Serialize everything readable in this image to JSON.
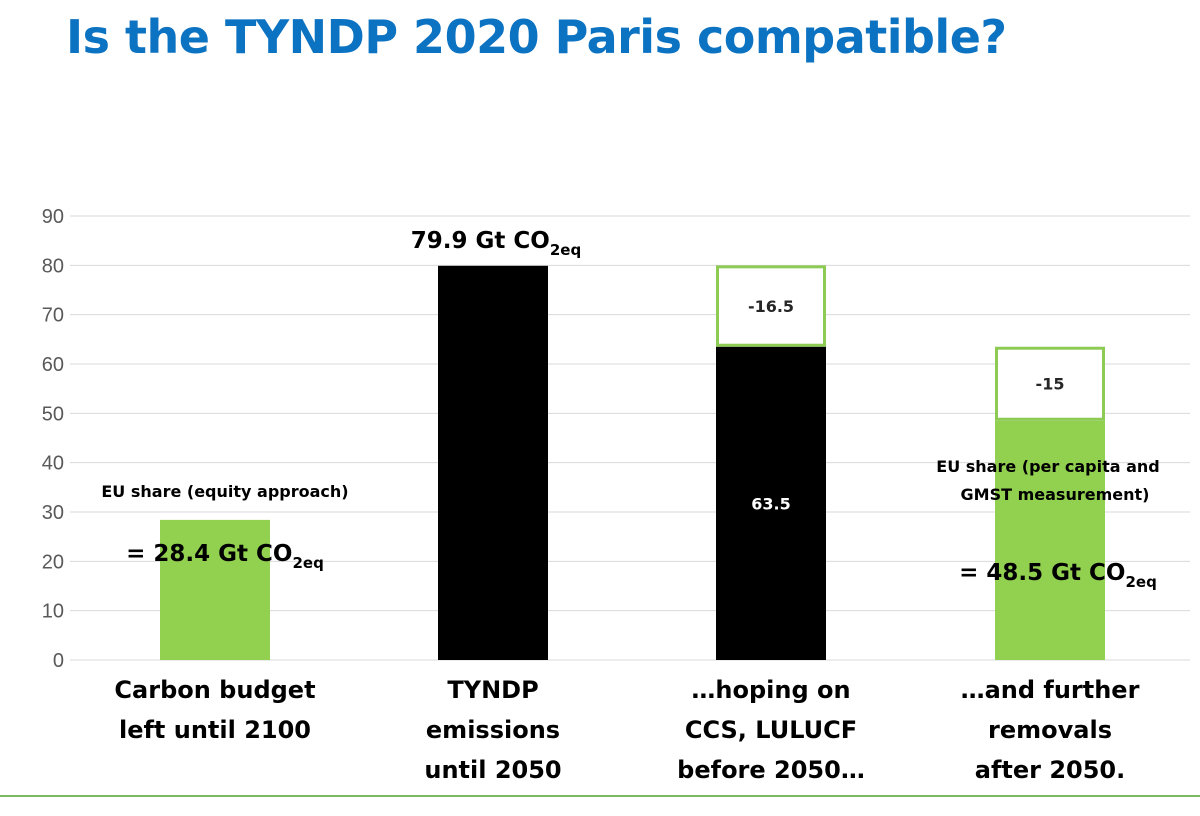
{
  "title": "Is the TYNDP 2020 Paris compatible?",
  "colors": {
    "title": "#0c72c2",
    "green": "#92d050",
    "green_outline": "#8dcb55",
    "black": "#000000",
    "grid": "#d9d9d9",
    "rule": "#7cb961"
  },
  "chart_data": {
    "type": "bar",
    "ylim": [
      0,
      90
    ],
    "yticks": [
      0,
      10,
      20,
      30,
      40,
      50,
      60,
      70,
      80,
      90
    ],
    "grid": true,
    "categories": [
      [
        "Carbon budget",
        "left until 2100"
      ],
      [
        "TYNDP",
        "emissions",
        "until 2050"
      ],
      [
        "…hoping on",
        "CCS, LULUCF",
        "before 2050…"
      ],
      [
        "…and further",
        "removals",
        "after 2050."
      ]
    ],
    "bars": [
      {
        "category": 0,
        "value": 28.4,
        "color": "#92d050"
      },
      {
        "category": 1,
        "value": 79.9,
        "color": "#000000"
      },
      {
        "category": 2,
        "value": 63.5,
        "color": "#000000",
        "label": "63.5"
      },
      {
        "category": 2,
        "base": 63.5,
        "value": 16.5,
        "color": "#ffffff",
        "outline": "#8dcb55",
        "label": "-16.5"
      },
      {
        "category": 3,
        "value": 48.5,
        "color": "#92d050"
      },
      {
        "category": 3,
        "base": 48.5,
        "value": 15,
        "color": "#ffffff",
        "outline": "#8dcb55",
        "label": "-15"
      }
    ],
    "annotations": [
      {
        "category": 0,
        "lines": [
          "EU share (equity approach)"
        ],
        "value": "= 28.4 Gt CO",
        "sub": "2eq"
      },
      {
        "category": 1,
        "value": "79.9 Gt CO",
        "sub": "2eq"
      },
      {
        "category": 3,
        "lines": [
          "EU share (per capita and",
          "GMST measurement)"
        ],
        "value": "= 48.5 Gt CO",
        "sub": "2eq"
      }
    ]
  }
}
